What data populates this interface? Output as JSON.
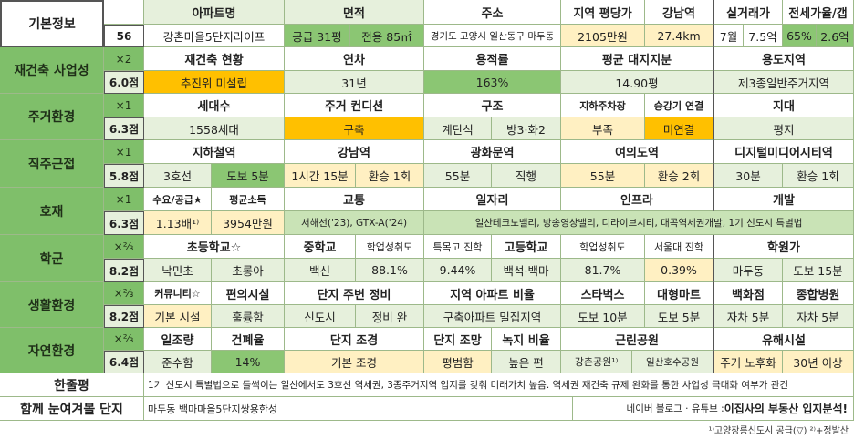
{
  "rows": {
    "basic": {
      "category": "기본정보",
      "count": "56",
      "headers": [
        "아파트명",
        "면적",
        "주소",
        "지역 평당가",
        "강남역",
        "실거래가",
        "전세가율/갭"
      ],
      "apartment": "강촌마을5단지라이프",
      "area_supply": "공급 31평",
      "area_exclusive": "전용 85㎡",
      "address": "경기도 고양시 일산동구 마두동",
      "price_per_pyeong": "2105만원",
      "gangnam_distance": "27.4km",
      "trade_month": "7월",
      "trade_price": "7.5억",
      "jeonse_ratio": "65%",
      "gap": "2.6억"
    },
    "rebuild": {
      "category": "재건축 사업성",
      "mult": "×2",
      "score": "6.0점",
      "headers": [
        "재건축 현황",
        "연차",
        "용적률",
        "평균 대지지분",
        "용도지역"
      ],
      "values": [
        "추진위 미설립",
        "31년",
        "163%",
        "14.90평",
        "제3종일반주거지역"
      ]
    },
    "living": {
      "category": "주거환경",
      "mult": "×1",
      "score": "6.3점",
      "headers": [
        "세대수",
        "주거 컨디션",
        "구조",
        "지하주차장",
        "승강기 연결",
        "지대"
      ],
      "households": "1558세대",
      "condition": "구축",
      "structure_a": "계단식",
      "structure_b": "방3·화2",
      "parking": "부족",
      "elevator": "미연결",
      "terrain": "평지"
    },
    "commute": {
      "category": "직주근접",
      "mult": "×1",
      "score": "5.8점",
      "headers": [
        "지하철역",
        "강남역",
        "광화문역",
        "여의도역",
        "디지털미디어시티역"
      ],
      "subway_line": "3호선",
      "subway_walk": "도보 5분",
      "gangnam_time": "1시간 15분",
      "gangnam_transfer": "환승 1회",
      "gwanghwamun_time": "55분",
      "gwanghwamun_transfer": "직행",
      "yeouido_time": "55분",
      "yeouido_transfer": "환승 2회",
      "dmc_time": "30분",
      "dmc_transfer": "환승 1회"
    },
    "development": {
      "category": "호재",
      "mult": "×1",
      "score": "6.3점",
      "headers": [
        "수요/공급★",
        "평균소득",
        "교통",
        "일자리",
        "인프라",
        "개발"
      ],
      "supply_demand": "1.13배¹⁾",
      "income": "3954만원",
      "transport": "서해선('23), GTX-A('24)",
      "other": "일산테크노밸리, 방송영상밸리, 디라이브시티, 대곡역세권개발, 1기 신도시 특별법"
    },
    "school": {
      "category": "학군",
      "mult": "×⅔",
      "score": "8.2점",
      "headers": [
        "초등학교☆",
        "중학교",
        "학업성취도",
        "특목고 진학",
        "고등학교",
        "학업성취도",
        "서울대 진학",
        "학원가"
      ],
      "elementary": "낙민초",
      "elementary2": "초롱아",
      "middle": "백신",
      "middle_score": "88.1%",
      "special_rate": "9.44%",
      "high": "백석·백마",
      "high_score": "81.7%",
      "snu_rate": "0.39%",
      "academy_area": "마두동",
      "academy_walk": "도보 15분"
    },
    "lifestyle": {
      "category": "생활환경",
      "mult": "×⅔",
      "score": "8.2점",
      "headers": [
        "커뮤니티☆",
        "편의시설",
        "단지 주변 정비",
        "지역 아파트 비율",
        "스타벅스",
        "대형마트",
        "백화점",
        "종합병원"
      ],
      "community": "기본 시설",
      "convenience": "훌륭함",
      "surround_a": "신도시",
      "surround_b": "정비 완",
      "apt_ratio": "구축아파트 밀집지역",
      "starbucks": "도보 10분",
      "mart": "도보 5분",
      "department": "자차 5분",
      "hospital": "자차 5분"
    },
    "nature": {
      "category": "자연환경",
      "mult": "×⅔",
      "score": "6.4점",
      "headers": [
        "일조량",
        "건폐율",
        "단지 조경",
        "단지 조망",
        "녹지 비율",
        "근린공원",
        "유해시설"
      ],
      "sunlight": "준수함",
      "coverage": "14%",
      "landscape": "기본 조경",
      "view": "평범함",
      "green_ratio": "높은 편",
      "park_a": "강촌공원¹⁾",
      "park_b": "일산호수공원",
      "harmful_a": "주거 노후화",
      "harmful_b": "30년 이상"
    },
    "summary": {
      "category": "한줄평",
      "text": "1기 신도시 특별법으로 들썩이는 일산에서도 3호선 역세권, 3종주거지역 입지를 갖춰 미래가치 높음. 역세권 재건축 규제 완화를 통한 사업성 극대화 여부가 관건"
    },
    "compare": {
      "category": "함께 눈여겨볼 단지",
      "text": "마두동 백마마을5단지쌍용한성",
      "credit_plain": "네이버 블로그 · 유튜브 : ",
      "credit_bold": "이집사의 부동산 입지분석!"
    }
  },
  "footnote": "¹⁾고양창릉신도시 공급(▽) ²⁾+정발산"
}
